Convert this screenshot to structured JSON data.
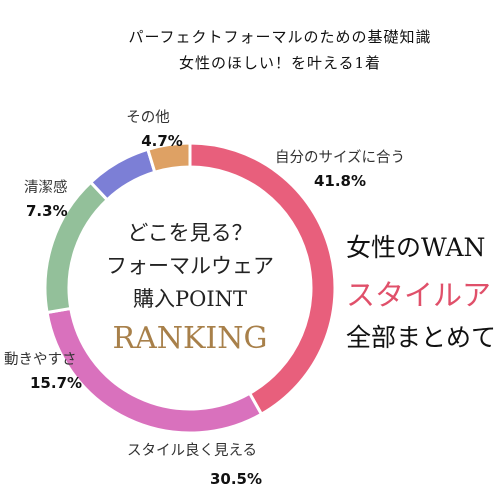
{
  "header": {
    "line1": "パーフェクトフォーマルのための基礎知識",
    "line2": "女性のほしい！を叶える1着"
  },
  "side_text": {
    "line1": "女性のWAN",
    "line2": "スタイルア",
    "line3": "全部まとめて"
  },
  "chart_data": {
    "type": "pie",
    "donut": true,
    "center_text": [
      "どこを見る？",
      "フォーマルウェア",
      "購入POINT"
    ],
    "center_highlight": "RANKING",
    "slices": [
      {
        "label": "自分のサイズに合う",
        "value": 41.8,
        "display": "41.8%",
        "color": "#e85f7c"
      },
      {
        "label": "スタイル良く見える",
        "value": 30.5,
        "display": "30.5%",
        "color": "#d971bd"
      },
      {
        "label": "動きやすさ",
        "value": 15.7,
        "display": "15.7%",
        "color": "#93c09a"
      },
      {
        "label": "清潔感",
        "value": 7.3,
        "display": "7.3%",
        "color": "#7c7fd6"
      },
      {
        "label": "その他",
        "value": 4.7,
        "display": "4.7%",
        "color": "#dea164"
      }
    ],
    "colors": {
      "rank_accent": "#a8804a",
      "side_accent": "#e0506a"
    }
  }
}
